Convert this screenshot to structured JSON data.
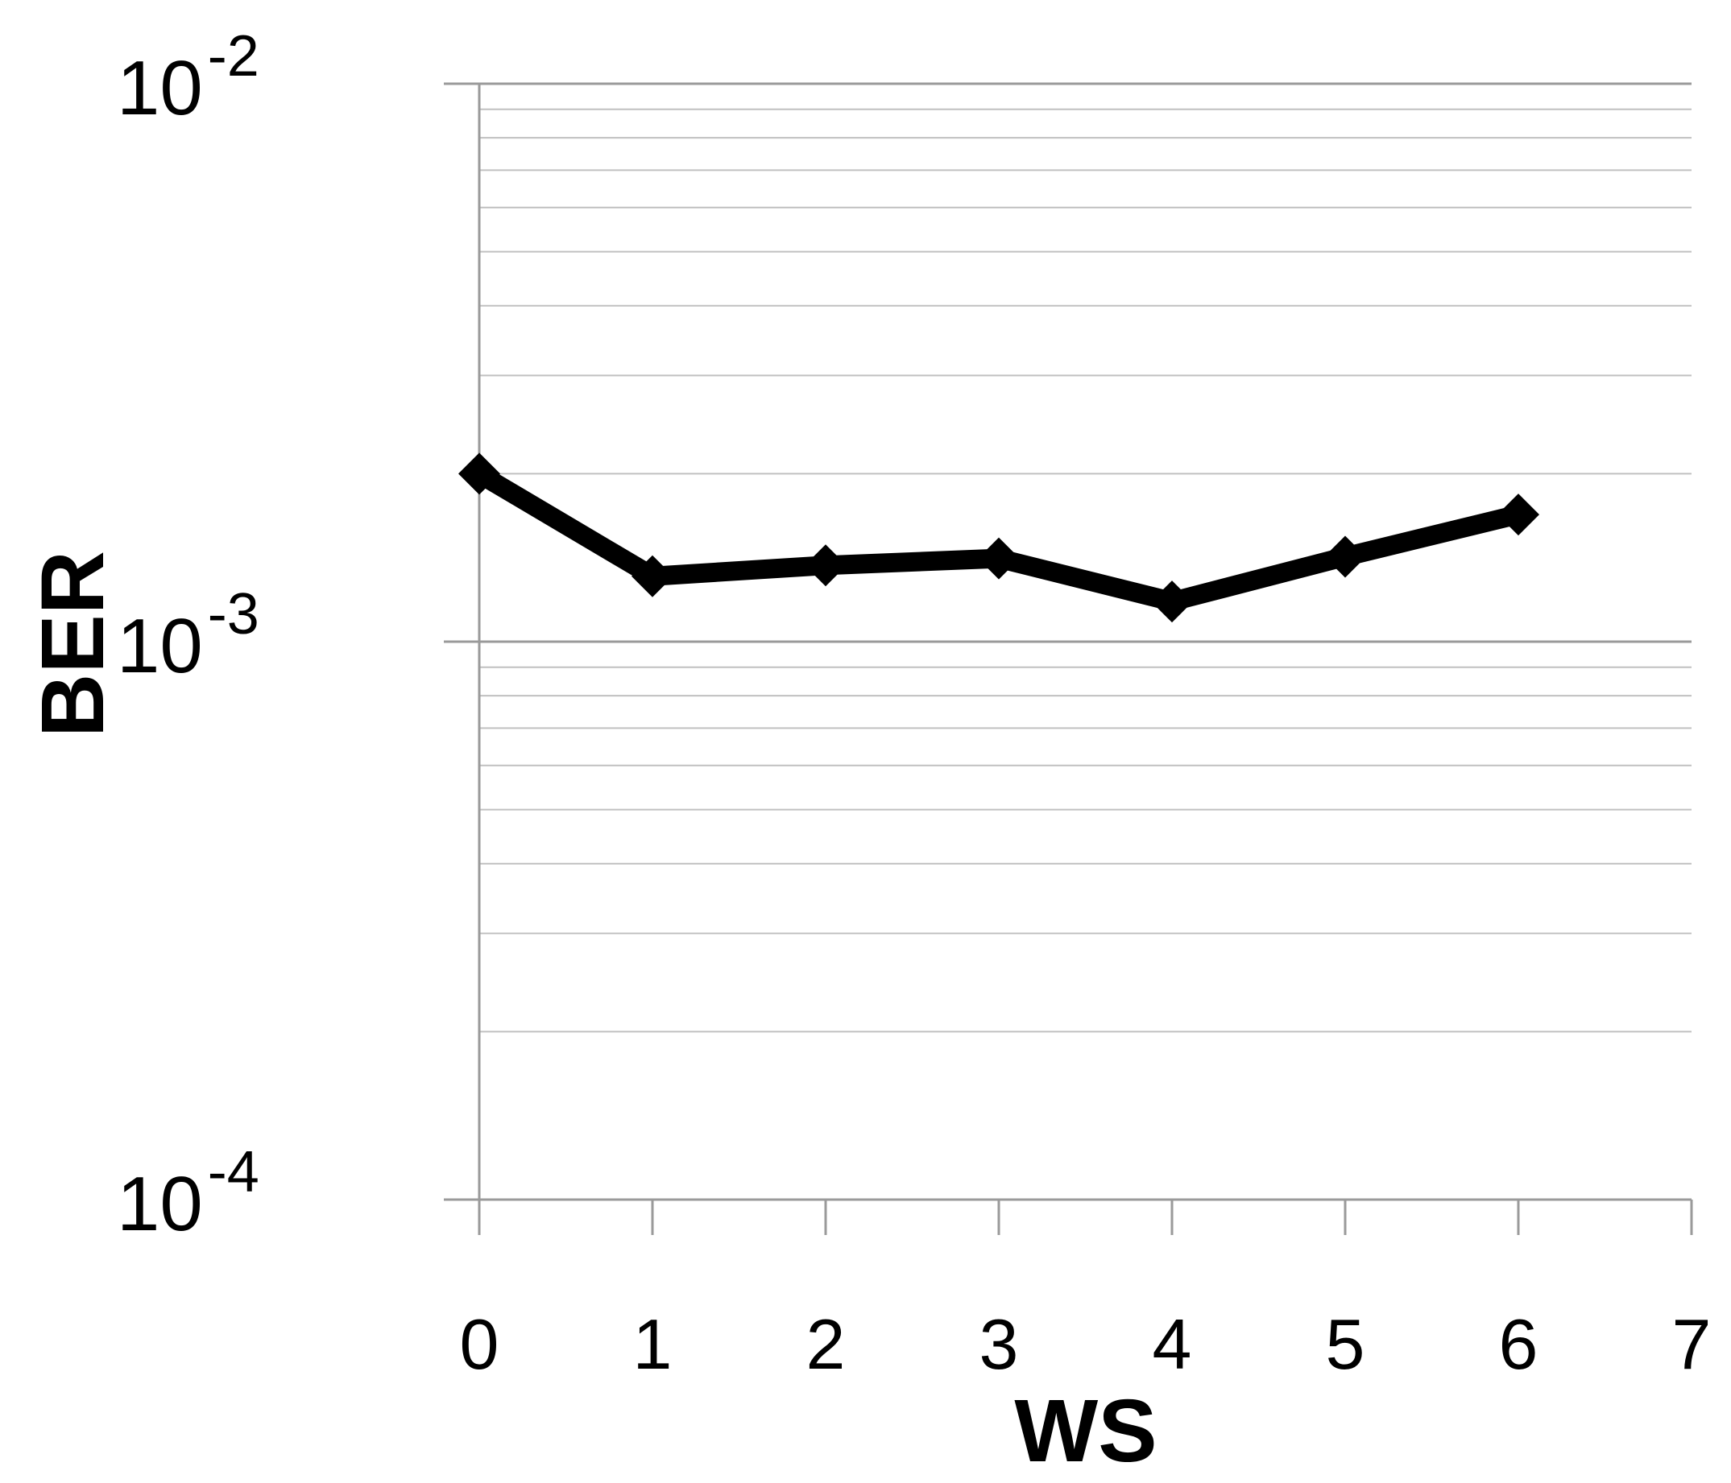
{
  "chart_data": {
    "type": "line",
    "title": "",
    "xlabel": "WS",
    "ylabel": "BER",
    "x_ticks": [
      "0",
      "1",
      "2",
      "3",
      "4",
      "5",
      "6",
      "7"
    ],
    "xlim": [
      0,
      7
    ],
    "y_scale": "log",
    "ylim": [
      0.0001,
      0.01
    ],
    "y_ticks": [
      {
        "value": 0.01,
        "base": "10",
        "exponent": "-2"
      },
      {
        "value": 0.001,
        "base": "10",
        "exponent": "-3"
      },
      {
        "value": 0.0001,
        "base": "10",
        "exponent": "-4"
      }
    ],
    "grid": "horizontal minor and major",
    "legend": "none",
    "series": [
      {
        "x": [
          0,
          1,
          2,
          3,
          4,
          5,
          6
        ],
        "y": [
          0.002,
          0.00131,
          0.00137,
          0.00141,
          0.00118,
          0.00142,
          0.00169
        ],
        "marker": "diamond",
        "color": "#000000"
      }
    ]
  }
}
